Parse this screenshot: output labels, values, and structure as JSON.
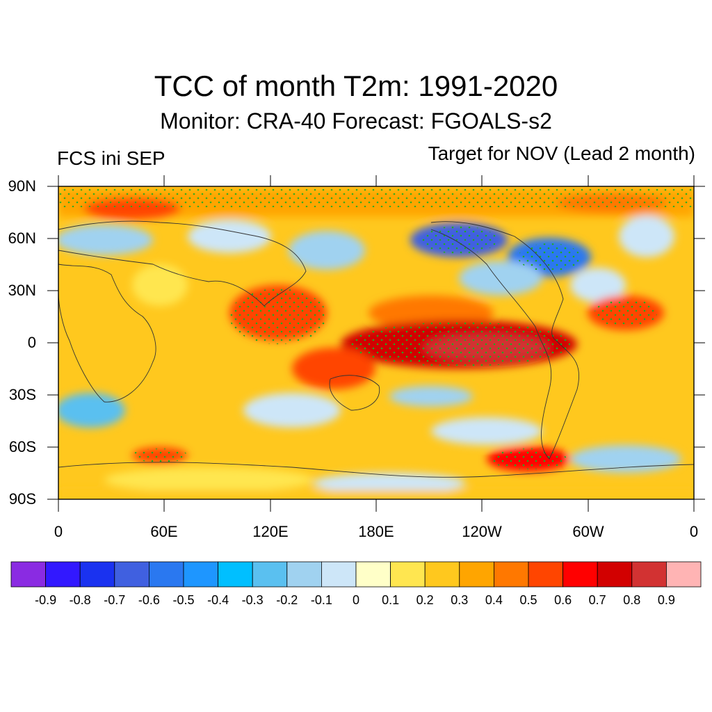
{
  "title": "TCC of month T2m: 1991-2020",
  "subtitle": "Monitor: CRA-40   Forecast: FGOALS-s2",
  "left_label": "FCS ini SEP",
  "right_label": "Target for NOV (Lead 2 month)",
  "lat_labels": [
    "90N",
    "60N",
    "30N",
    "0",
    "30S",
    "60S",
    "90S"
  ],
  "lon_labels": [
    "0",
    "60E",
    "120E",
    "180E",
    "120W",
    "60W",
    "0"
  ],
  "colorbar": {
    "colors": [
      "#8a2be2",
      "#3218ff",
      "#1a32f0",
      "#4060e0",
      "#2a78f0",
      "#1e96ff",
      "#00bfff",
      "#5ac0f0",
      "#a0d2f0",
      "#cde6f8",
      "#ffffc8",
      "#ffe650",
      "#ffc81e",
      "#ffa500",
      "#ff7800",
      "#ff4500",
      "#ff0000",
      "#d20000",
      "#d23232",
      "#ffb4b4"
    ],
    "labels": [
      "-0.9",
      "-0.8",
      "-0.7",
      "-0.6",
      "-0.5",
      "-0.4",
      "-0.3",
      "-0.2",
      "-0.1",
      "0",
      "0.1",
      "0.2",
      "0.3",
      "0.4",
      "0.5",
      "0.6",
      "0.7",
      "0.8",
      "0.9"
    ]
  }
}
